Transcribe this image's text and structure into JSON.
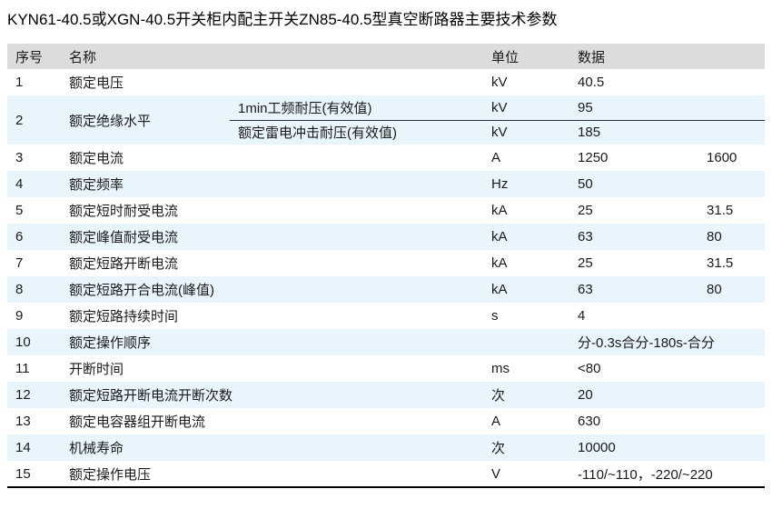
{
  "title": "KYN61-40.5或XGN-40.5开关柜内配主开关ZN85-40.5型真空断路器主要技术参数",
  "table": {
    "headers": {
      "index": "序号",
      "name": "名称",
      "unit": "单位",
      "data": "数据"
    },
    "colors": {
      "header_bg": "#dcdcdc",
      "alt_row_bg": "#e9f5fd",
      "text": "#1a1a1a",
      "bottom_border": "#000000"
    },
    "rows": [
      {
        "index": "1",
        "name": "额定电压",
        "unit": "kV",
        "data1": "40.5",
        "data2": ""
      },
      {
        "index": "2",
        "name": "额定绝缘水平",
        "subrows": [
          {
            "name": "1min工频耐压(有效值)",
            "unit": "kV",
            "data1": "95"
          },
          {
            "name": "额定雷电冲击耐压(有效值)",
            "unit": "kV",
            "data1": "185"
          }
        ]
      },
      {
        "index": "3",
        "name": "额定电流",
        "unit": "A",
        "data1": "1250",
        "data2": "1600"
      },
      {
        "index": "4",
        "name": "额定频率",
        "unit": "Hz",
        "data1": "50",
        "data2": ""
      },
      {
        "index": "5",
        "name": "额定短时耐受电流",
        "unit": "kA",
        "data1": "25",
        "data2": "31.5"
      },
      {
        "index": "6",
        "name": "额定峰值耐受电流",
        "unit": "kA",
        "data1": "63",
        "data2": "80"
      },
      {
        "index": "7",
        "name": "额定短路开断电流",
        "unit": "kA",
        "data1": "25",
        "data2": "31.5"
      },
      {
        "index": "8",
        "name": "额定短路开合电流(峰值)",
        "unit": "kA",
        "data1": "63",
        "data2": "80"
      },
      {
        "index": "9",
        "name": "额定短路持续时间",
        "unit": "s",
        "data1": "4",
        "data2": ""
      },
      {
        "index": "10",
        "name": "额定操作顺序",
        "unit": "",
        "data1": "分-0.3s合分-180s-合分",
        "data2": ""
      },
      {
        "index": "11",
        "name": "开断时间",
        "unit": "ms",
        "data1": "<80",
        "data2": ""
      },
      {
        "index": "12",
        "name": "额定短路开断电流开断次数",
        "unit": "次",
        "data1": "20",
        "data2": ""
      },
      {
        "index": "13",
        "name": "额定电容器组开断电流",
        "unit": "A",
        "data1": "630",
        "data2": ""
      },
      {
        "index": "14",
        "name": "机械寿命",
        "unit": "次",
        "data1": "10000",
        "data2": ""
      },
      {
        "index": "15",
        "name": "额定操作电压",
        "unit": "V",
        "data1": "-110/~110，-220/~220",
        "data2": ""
      }
    ]
  }
}
